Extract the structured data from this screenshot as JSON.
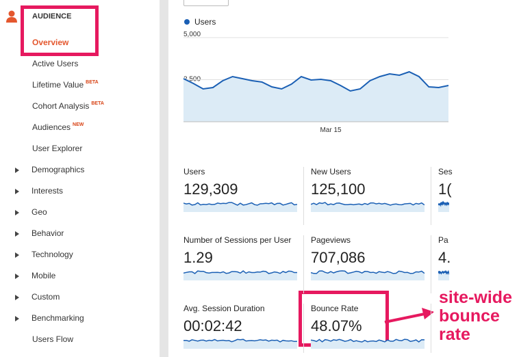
{
  "sidebar": {
    "section": "AUDIENCE",
    "items": [
      {
        "label": "Overview"
      },
      {
        "label": "Active Users"
      },
      {
        "label": "Lifetime Value",
        "badge": "BETA"
      },
      {
        "label": "Cohort Analysis",
        "badge": "BETA"
      },
      {
        "label": "Audiences",
        "badge": "NEW"
      },
      {
        "label": "User Explorer"
      },
      {
        "label": "Demographics",
        "expandable": true
      },
      {
        "label": "Interests",
        "expandable": true
      },
      {
        "label": "Geo",
        "expandable": true
      },
      {
        "label": "Behavior",
        "expandable": true
      },
      {
        "label": "Technology",
        "expandable": true
      },
      {
        "label": "Mobile",
        "expandable": true
      },
      {
        "label": "Custom",
        "expandable": true
      },
      {
        "label": "Benchmarking",
        "expandable": true
      },
      {
        "label": "Users Flow"
      }
    ]
  },
  "chart": {
    "type": "line",
    "series": [
      {
        "name": "Users",
        "color": "#1a5fb4",
        "values": [
          2561,
          2276,
          1951,
          2033,
          2439,
          2683,
          2561,
          2439,
          2358,
          2073,
          1951,
          2236,
          2683,
          2480,
          2520,
          2439,
          2154,
          1829,
          1951,
          2439,
          2683,
          2846,
          2764,
          2967,
          2683,
          2073,
          2033,
          2154
        ]
      }
    ],
    "categories": [
      null,
      null,
      null,
      null,
      null,
      null,
      null,
      null,
      null,
      null,
      null,
      null,
      null,
      null,
      null,
      "Mar 15",
      null,
      null,
      null,
      null,
      null,
      null,
      null,
      null,
      null,
      null,
      null,
      null
    ],
    "ylim": [
      0,
      5000
    ],
    "yticks": [
      {
        "value": 2500,
        "label": "2,500"
      },
      {
        "value": 5000,
        "label": "5,000"
      }
    ]
  },
  "metrics": [
    [
      {
        "label": "Users",
        "value": "129,309"
      },
      {
        "label": "New Users",
        "value": "125,100"
      },
      {
        "label": "Ses",
        "value": "1("
      }
    ],
    [
      {
        "label": "Number of Sessions per User",
        "value": "1.29"
      },
      {
        "label": "Pageviews",
        "value": "707,086"
      },
      {
        "label": "Pa",
        "value": "4."
      }
    ],
    [
      {
        "label": "Avg. Session Duration",
        "value": "00:02:42"
      },
      {
        "label": "Bounce Rate",
        "value": "48.07%"
      },
      {
        "label": "",
        "value": ""
      }
    ]
  ],
  "annotation": [
    "site-wide",
    "bounce",
    "rate"
  ]
}
